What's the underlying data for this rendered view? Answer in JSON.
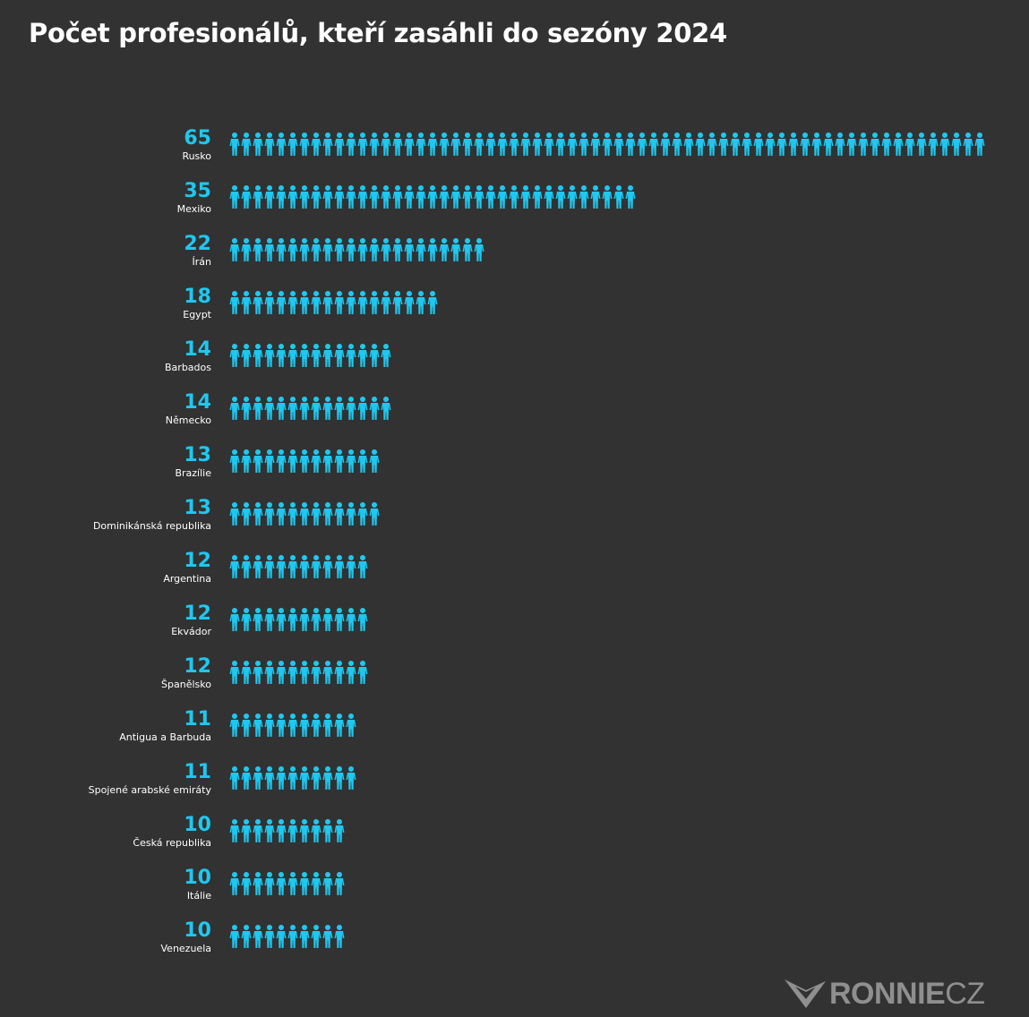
{
  "title": "Počet profesionálů, kteří zasáhli do sezóny 2024",
  "logo": {
    "bold": "RONNIE",
    "light": "CZ"
  },
  "colors": {
    "background": "#323232",
    "accent": "#1ec8f0",
    "text": "#ffffff",
    "logo": "#8f8f8f"
  },
  "icon": "person-icon",
  "chart_data": {
    "type": "bar",
    "title": "Počet profesionálů, kteří zasáhli do sezóny 2024",
    "categories": [
      "Rusko",
      "Mexiko",
      "Írán",
      "Egypt",
      "Barbados",
      "Německo",
      "Brazílie",
      "Dominikánská republika",
      "Argentina",
      "Ekvádor",
      "Španělsko",
      "Antigua a Barbuda",
      "Spojené arabské emiráty",
      "Česká republika",
      "Itálie",
      "Venezuela"
    ],
    "values": [
      65,
      35,
      22,
      18,
      14,
      14,
      13,
      13,
      12,
      12,
      12,
      11,
      11,
      10,
      10,
      10
    ],
    "orientation": "horizontal",
    "unit_icon": "person-icon"
  }
}
